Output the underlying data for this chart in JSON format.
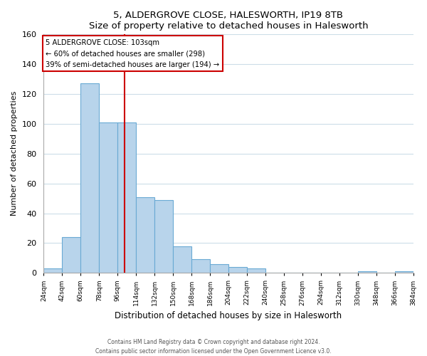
{
  "title": "5, ALDERGROVE CLOSE, HALESWORTH, IP19 8TB",
  "subtitle": "Size of property relative to detached houses in Halesworth",
  "xlabel": "Distribution of detached houses by size in Halesworth",
  "ylabel": "Number of detached properties",
  "bar_color": "#b8d4eb",
  "bar_edge_color": "#6aaad4",
  "bin_starts": [
    24,
    42,
    60,
    78,
    96,
    114,
    132,
    150,
    168,
    186,
    204,
    222,
    240,
    258,
    276,
    294,
    312,
    330,
    348,
    366
  ],
  "bin_width": 18,
  "values": [
    3,
    24,
    127,
    101,
    101,
    51,
    49,
    18,
    9,
    6,
    4,
    3,
    0,
    0,
    0,
    0,
    0,
    1,
    0,
    1
  ],
  "tick_positions": [
    24,
    42,
    60,
    78,
    96,
    114,
    132,
    150,
    168,
    186,
    204,
    222,
    240,
    258,
    276,
    294,
    312,
    330,
    348,
    366,
    384
  ],
  "tick_labels": [
    "24sqm",
    "42sqm",
    "60sqm",
    "78sqm",
    "96sqm",
    "114sqm",
    "132sqm",
    "150sqm",
    "168sqm",
    "186sqm",
    "204sqm",
    "222sqm",
    "240sqm",
    "258sqm",
    "276sqm",
    "294sqm",
    "312sqm",
    "330sqm",
    "348sqm",
    "366sqm",
    "384sqm"
  ],
  "marker_x": 103,
  "marker_line_color": "#cc0000",
  "annotation_title": "5 ALDERGROVE CLOSE: 103sqm",
  "annotation_line1": "← 60% of detached houses are smaller (298)",
  "annotation_line2": "39% of semi-detached houses are larger (194) →",
  "annotation_box_color": "#ffffff",
  "annotation_box_edge_color": "#cc0000",
  "ylim": [
    0,
    160
  ],
  "xlim": [
    24,
    384
  ],
  "yticks": [
    0,
    20,
    40,
    60,
    80,
    100,
    120,
    140,
    160
  ],
  "grid_color": "#ccdde8",
  "footer1": "Contains HM Land Registry data © Crown copyright and database right 2024.",
  "footer2": "Contains public sector information licensed under the Open Government Licence v3.0."
}
